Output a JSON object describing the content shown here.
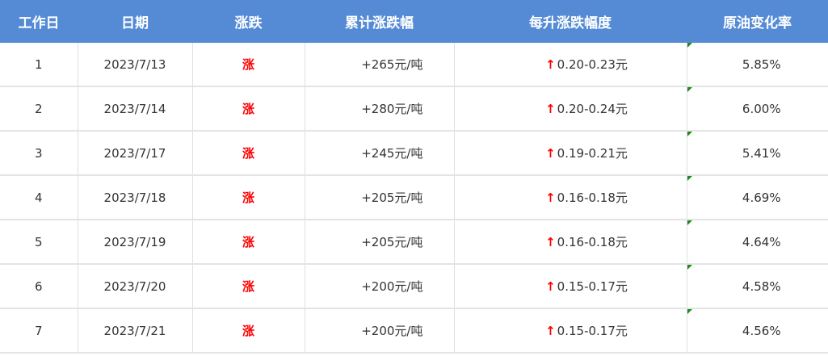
{
  "table": {
    "headers": [
      "工作日",
      "日期",
      "涨跌",
      "累计涨跌幅",
      "每升涨跌幅度",
      "原油变化率"
    ],
    "rows": [
      {
        "day": "1",
        "date": "2023/7/13",
        "trend": "涨",
        "cumulative": "+265元/吨",
        "per_liter": "0.20-0.23元",
        "crude_change": "5.85%"
      },
      {
        "day": "2",
        "date": "2023/7/14",
        "trend": "涨",
        "cumulative": "+280元/吨",
        "per_liter": "0.20-0.24元",
        "crude_change": "6.00%"
      },
      {
        "day": "3",
        "date": "2023/7/17",
        "trend": "涨",
        "cumulative": "+245元/吨",
        "per_liter": "0.19-0.21元",
        "crude_change": "5.41%"
      },
      {
        "day": "4",
        "date": "2023/7/18",
        "trend": "涨",
        "cumulative": "+205元/吨",
        "per_liter": "0.16-0.18元",
        "crude_change": "4.69%"
      },
      {
        "day": "5",
        "date": "2023/7/19",
        "trend": "涨",
        "cumulative": "+205元/吨",
        "per_liter": "0.16-0.18元",
        "crude_change": "4.64%"
      },
      {
        "day": "6",
        "date": "2023/7/20",
        "trend": "涨",
        "cumulative": "+200元/吨",
        "per_liter": "0.15-0.17元",
        "crude_change": "4.58%"
      },
      {
        "day": "7",
        "date": "2023/7/21",
        "trend": "涨",
        "cumulative": "+200元/吨",
        "per_liter": "0.15-0.17元",
        "crude_change": "4.56%"
      }
    ],
    "arrow_symbol": "↑",
    "colors": {
      "header_bg": "#558bd5",
      "rise": "#ff0000",
      "comment_marker": "#1e8a1e"
    }
  }
}
